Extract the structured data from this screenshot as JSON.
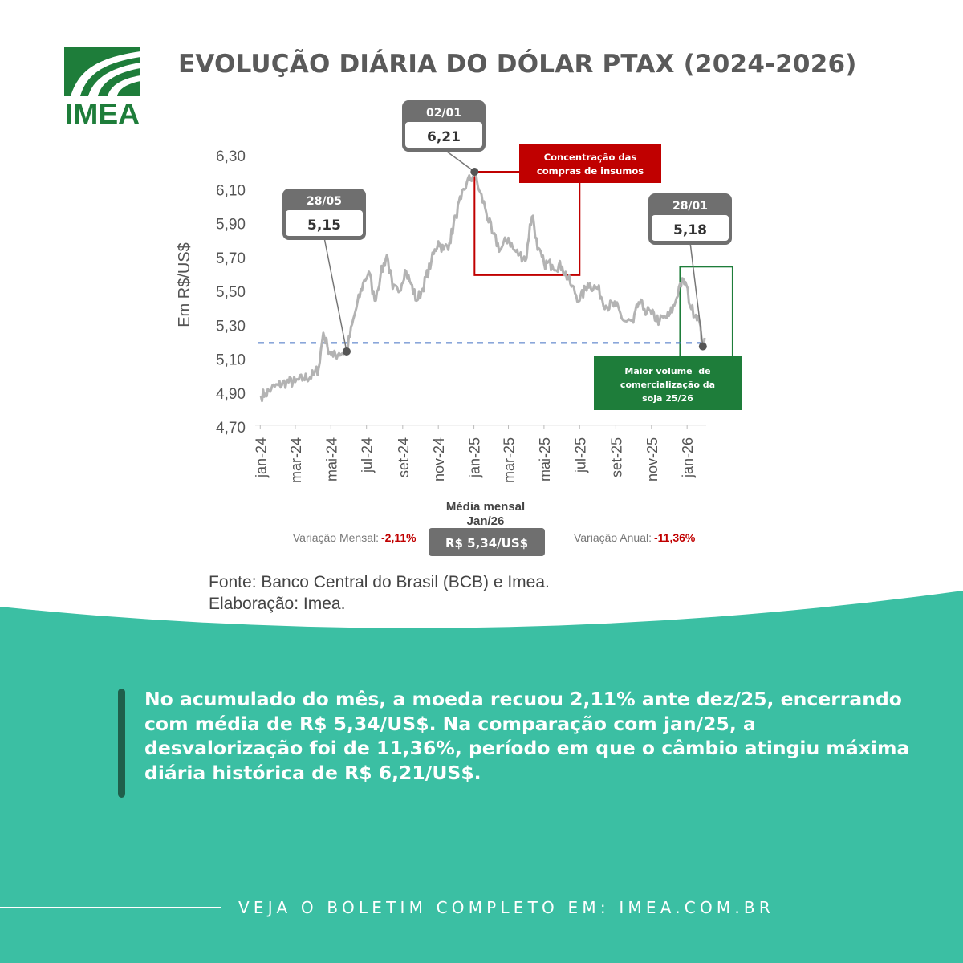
{
  "brand": {
    "logo_text": "IMEA",
    "green": "#1e7d3a"
  },
  "title": "EVOLUÇÃO DIÁRIA DO DÓLAR PTAX (2024-2026)",
  "chart_data": {
    "type": "line",
    "ylabel": "Em R$/US$",
    "ylim": [
      4.7,
      6.3
    ],
    "yticks": [
      "6,30",
      "6,10",
      "5,90",
      "5,70",
      "5,50",
      "5,30",
      "5,10",
      "4,90",
      "4,70"
    ],
    "ytick_values": [
      6.3,
      6.1,
      5.9,
      5.7,
      5.5,
      5.3,
      5.1,
      4.9,
      4.7
    ],
    "x_range": [
      "2024-01-02",
      "2026-01-31"
    ],
    "xticks": [
      "jan-24",
      "mar-24",
      "mai-24",
      "jul-24",
      "set-24",
      "nov-24",
      "jan-25",
      "mar-25",
      "mai-25",
      "jul-25",
      "set-25",
      "nov-25",
      "jan-26"
    ],
    "xtick_dates": [
      "2024-01-01",
      "2024-03-01",
      "2024-05-01",
      "2024-07-01",
      "2024-09-01",
      "2024-11-01",
      "2025-01-01",
      "2025-03-01",
      "2025-05-01",
      "2025-07-01",
      "2025-09-01",
      "2025-11-01",
      "2026-01-01"
    ],
    "series": [
      {
        "color": "#b3b3b3",
        "points": [
          [
            "2024-01-02",
            4.89
          ],
          [
            "2024-01-10",
            4.9
          ],
          [
            "2024-01-20",
            4.93
          ],
          [
            "2024-02-01",
            4.95
          ],
          [
            "2024-02-15",
            4.97
          ],
          [
            "2024-03-01",
            4.97
          ],
          [
            "2024-03-15",
            4.99
          ],
          [
            "2024-04-01",
            5.01
          ],
          [
            "2024-04-10",
            5.05
          ],
          [
            "2024-04-18",
            5.26
          ],
          [
            "2024-04-25",
            5.18
          ],
          [
            "2024-05-05",
            5.12
          ],
          [
            "2024-05-15",
            5.14
          ],
          [
            "2024-05-28",
            5.15
          ],
          [
            "2024-06-10",
            5.36
          ],
          [
            "2024-06-25",
            5.55
          ],
          [
            "2024-07-05",
            5.62
          ],
          [
            "2024-07-15",
            5.45
          ],
          [
            "2024-07-25",
            5.6
          ],
          [
            "2024-08-05",
            5.72
          ],
          [
            "2024-08-15",
            5.52
          ],
          [
            "2024-08-25",
            5.5
          ],
          [
            "2024-09-05",
            5.63
          ],
          [
            "2024-09-15",
            5.55
          ],
          [
            "2024-09-25",
            5.45
          ],
          [
            "2024-10-05",
            5.52
          ],
          [
            "2024-10-20",
            5.68
          ],
          [
            "2024-11-01",
            5.8
          ],
          [
            "2024-11-10",
            5.75
          ],
          [
            "2024-11-20",
            5.79
          ],
          [
            "2024-12-01",
            5.95
          ],
          [
            "2024-12-10",
            6.05
          ],
          [
            "2024-12-20",
            6.15
          ],
          [
            "2024-12-30",
            6.18
          ],
          [
            "2025-01-02",
            6.21
          ],
          [
            "2025-01-10",
            6.1
          ],
          [
            "2025-01-20",
            6.0
          ],
          [
            "2025-02-01",
            5.85
          ],
          [
            "2025-02-15",
            5.75
          ],
          [
            "2025-03-01",
            5.82
          ],
          [
            "2025-03-10",
            5.75
          ],
          [
            "2025-03-20",
            5.72
          ],
          [
            "2025-04-01",
            5.7
          ],
          [
            "2025-04-07",
            5.9
          ],
          [
            "2025-04-12",
            5.95
          ],
          [
            "2025-04-20",
            5.75
          ],
          [
            "2025-05-01",
            5.67
          ],
          [
            "2025-05-15",
            5.66
          ],
          [
            "2025-06-01",
            5.65
          ],
          [
            "2025-06-15",
            5.55
          ],
          [
            "2025-07-01",
            5.45
          ],
          [
            "2025-07-15",
            5.55
          ],
          [
            "2025-08-01",
            5.52
          ],
          [
            "2025-08-15",
            5.42
          ],
          [
            "2025-09-01",
            5.42
          ],
          [
            "2025-09-15",
            5.33
          ],
          [
            "2025-10-01",
            5.32
          ],
          [
            "2025-10-10",
            5.44
          ],
          [
            "2025-10-20",
            5.4
          ],
          [
            "2025-11-01",
            5.37
          ],
          [
            "2025-11-15",
            5.33
          ],
          [
            "2025-12-01",
            5.36
          ],
          [
            "2025-12-10",
            5.42
          ],
          [
            "2025-12-20",
            5.55
          ],
          [
            "2025-12-29",
            5.56
          ],
          [
            "2026-01-08",
            5.4
          ],
          [
            "2026-01-20",
            5.36
          ],
          [
            "2026-01-28",
            5.18
          ],
          [
            "2026-01-31",
            5.23
          ]
        ]
      }
    ],
    "reference_line": {
      "value": 5.2,
      "color": "#4472c4"
    },
    "callouts": [
      {
        "date_label": "28/05",
        "value_label": "5,15",
        "date": "2024-05-28",
        "value": 5.15
      },
      {
        "date_label": "02/01",
        "value_label": "6,21",
        "date": "2025-01-02",
        "value": 6.21
      },
      {
        "date_label": "28/01",
        "value_label": "5,18",
        "date": "2026-01-28",
        "value": 5.18
      }
    ],
    "annotations": {
      "concentration": {
        "lines": [
          "Concentração das",
          "compras de insumos"
        ],
        "color": "#c00000",
        "x_range": [
          "2025-01-02",
          "2025-07-01"
        ],
        "y_range": [
          5.6,
          6.21
        ]
      },
      "commercialization": {
        "lines": [
          "Maior volume  de",
          "comercialização da",
          "soja 25/26"
        ],
        "color": "#1e7d3a",
        "x_range": [
          "2025-12-20",
          "2026-03-20"
        ],
        "y_range": [
          4.95,
          5.65
        ]
      }
    },
    "summary": {
      "heading": [
        "Média mensal",
        "Jan/26"
      ],
      "monthly_label": "Variação Mensal:",
      "monthly_value": "-2,11%",
      "average": "R$ 5,34/US$",
      "annual_label": "Variação Anual:",
      "annual_value": "-11,36%"
    }
  },
  "source": {
    "line1": "Fonte: Banco Central do Brasil (BCB) e Imea.",
    "line2": "Elaboração: Imea."
  },
  "summary_text": "No acumulado do mês, a moeda recuou 2,11% ante dez/25, encerrando com média de R$ 5,34/US$. Na comparação com jan/25, a desvalorização foi de 11,36%, período em que o câmbio atingiu máxima diária histórica de R$ 6,21/US$.",
  "footer": {
    "cta": "VEJA O BOLETIM COMPLETO EM: IMEA.COM.BR"
  },
  "colors": {
    "teal": "#3bbfa3",
    "dark_green": "#1f5f4b",
    "title_gray": "#5a5a5a",
    "callout_gray": "#6f6f6f"
  }
}
